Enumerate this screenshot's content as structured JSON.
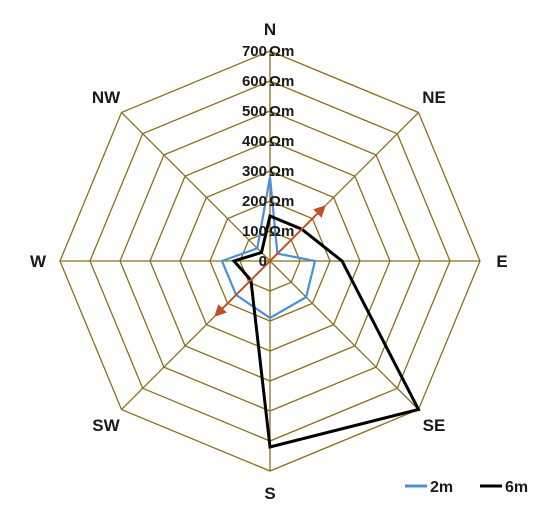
{
  "chart_data": {
    "type": "radar",
    "directions": [
      "N",
      "NE",
      "E",
      "SE",
      "S",
      "SW",
      "W",
      "NW"
    ],
    "r_ticks": [
      0,
      100,
      200,
      300,
      400,
      500,
      600,
      700
    ],
    "r_unit": "Ωm",
    "rlim": [
      0,
      700
    ],
    "grid": true,
    "series": [
      {
        "name": "2m",
        "color": "#4a90d9",
        "values": [
          280,
          35,
          150,
          170,
          190,
          160,
          160,
          60
        ]
      },
      {
        "name": "6m",
        "color": "#000000",
        "values": [
          150,
          150,
          240,
          700,
          620,
          90,
          120,
          40
        ]
      }
    ],
    "annotation": {
      "type": "double-arrow",
      "from": "SW",
      "to": "NE",
      "length": 510,
      "color": "#c0502a"
    },
    "legend_position": "bottom-right"
  }
}
